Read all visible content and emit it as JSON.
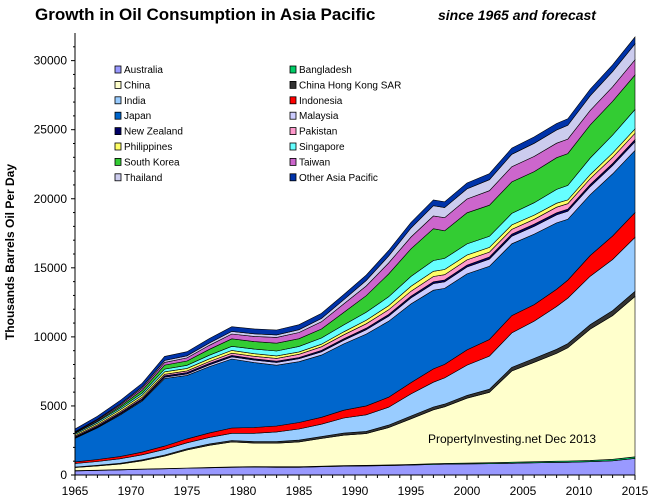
{
  "chart_data": {
    "type": "area",
    "stacked": true,
    "title": "Growth in Oil Consumption  in Asia Pacific",
    "subtitle": "since 1965 and forecast",
    "ylabel": "Thousands Barrels Oil Per Day",
    "xlabel": "",
    "annotation": "PropertyInvesting.net  Dec 2013",
    "xlim": [
      1965,
      2015
    ],
    "ylim": [
      0,
      32000
    ],
    "xticks": [
      "1965",
      "1970",
      "1975",
      "1980",
      "1985",
      "1990",
      "1995",
      "2000",
      "2005",
      "2010",
      "2015"
    ],
    "yticks": [
      "0",
      "5000",
      "10000",
      "15000",
      "20000",
      "25000",
      "30000"
    ],
    "grid": false,
    "legend_position": "inside-top-left",
    "x": [
      1965,
      1967,
      1969,
      1971,
      1973,
      1975,
      1977,
      1979,
      1981,
      1983,
      1985,
      1987,
      1989,
      1991,
      1993,
      1995,
      1997,
      1998,
      2000,
      2002,
      2004,
      2006,
      2008,
      2009,
      2011,
      2013,
      2015
    ],
    "series": [
      {
        "name": "Australia",
        "color": "#9999ff",
        "values": [
          300,
          330,
          370,
          410,
          450,
          490,
          520,
          560,
          570,
          560,
          560,
          600,
          640,
          660,
          680,
          720,
          760,
          780,
          800,
          820,
          850,
          880,
          910,
          920,
          960,
          1030,
          1200
        ]
      },
      {
        "name": "Bangladesh",
        "color": "#00cc66",
        "values": [
          20,
          20,
          20,
          20,
          20,
          20,
          30,
          30,
          40,
          40,
          40,
          40,
          40,
          40,
          50,
          50,
          60,
          60,
          60,
          70,
          80,
          80,
          90,
          90,
          100,
          110,
          120
        ]
      },
      {
        "name": "China",
        "color": "#ffffcc",
        "values": [
          220,
          300,
          400,
          600,
          900,
          1300,
          1600,
          1800,
          1700,
          1700,
          1800,
          2000,
          2200,
          2300,
          2700,
          3300,
          3900,
          4100,
          4700,
          5100,
          6600,
          7200,
          7800,
          8200,
          9500,
          10400,
          11600
        ]
      },
      {
        "name": "China Hong Kong SAR",
        "color": "#333333",
        "values": [
          40,
          50,
          60,
          70,
          80,
          90,
          100,
          110,
          110,
          120,
          130,
          140,
          150,
          160,
          180,
          200,
          200,
          190,
          200,
          220,
          260,
          280,
          300,
          300,
          330,
          360,
          380
        ]
      },
      {
        "name": "India",
        "color": "#99ccff",
        "values": [
          250,
          280,
          320,
          360,
          400,
          430,
          470,
          520,
          600,
          700,
          800,
          900,
          1100,
          1200,
          1300,
          1600,
          1800,
          1900,
          2200,
          2400,
          2500,
          2700,
          3100,
          3300,
          3500,
          3700,
          3900
        ]
      },
      {
        "name": "Indonesia",
        "color": "#ff0000",
        "values": [
          120,
          140,
          160,
          200,
          240,
          280,
          330,
          380,
          420,
          430,
          470,
          500,
          560,
          640,
          720,
          820,
          960,
          980,
          1100,
          1200,
          1250,
          1200,
          1250,
          1300,
          1500,
          1700,
          1800
        ]
      },
      {
        "name": "Japan",
        "color": "#0066cc",
        "values": [
          1700,
          2300,
          3000,
          3700,
          4900,
          4600,
          4800,
          5000,
          4700,
          4400,
          4400,
          4500,
          4800,
          5200,
          5500,
          5700,
          5700,
          5500,
          5500,
          5300,
          5200,
          5100,
          4800,
          4400,
          4400,
          4500,
          4500
        ]
      },
      {
        "name": "Malaysia",
        "color": "#ccccff",
        "values": [
          40,
          50,
          60,
          70,
          90,
          110,
          130,
          160,
          180,
          200,
          220,
          240,
          270,
          320,
          370,
          430,
          480,
          480,
          500,
          520,
          550,
          560,
          580,
          580,
          590,
          600,
          620
        ]
      },
      {
        "name": "New Zealand",
        "color": "#000066",
        "values": [
          70,
          80,
          90,
          95,
          100,
          100,
          100,
          100,
          95,
          90,
          90,
          100,
          100,
          110,
          120,
          130,
          130,
          130,
          140,
          150,
          150,
          155,
          155,
          150,
          150,
          155,
          160
        ]
      },
      {
        "name": "Pakistan",
        "color": "#ff99cc",
        "values": [
          70,
          80,
          90,
          100,
          110,
          120,
          140,
          160,
          180,
          200,
          230,
          260,
          290,
          320,
          340,
          360,
          380,
          380,
          370,
          360,
          340,
          360,
          400,
          400,
          420,
          440,
          460
        ]
      },
      {
        "name": "Philippines",
        "color": "#ffff66",
        "values": [
          100,
          120,
          140,
          160,
          180,
          180,
          190,
          200,
          190,
          180,
          170,
          190,
          220,
          250,
          300,
          350,
          380,
          380,
          360,
          340,
          330,
          300,
          290,
          280,
          300,
          310,
          320
        ]
      },
      {
        "name": "Singapore",
        "color": "#66ffff",
        "values": [
          80,
          100,
          120,
          150,
          200,
          220,
          260,
          300,
          330,
          360,
          400,
          450,
          500,
          580,
          640,
          720,
          780,
          800,
          800,
          800,
          830,
          900,
          1000,
          1050,
          1200,
          1300,
          1400
        ]
      },
      {
        "name": "South Korea",
        "color": "#33cc33",
        "values": [
          30,
          60,
          120,
          200,
          290,
          310,
          430,
          540,
          540,
          560,
          560,
          650,
          900,
          1200,
          1650,
          2000,
          2300,
          2000,
          2250,
          2250,
          2280,
          2250,
          2300,
          2300,
          2400,
          2450,
          2500
        ]
      },
      {
        "name": "Taiwan",
        "color": "#cc66cc",
        "values": [
          50,
          70,
          100,
          140,
          190,
          230,
          290,
          350,
          380,
          420,
          450,
          520,
          620,
          700,
          800,
          850,
          920,
          950,
          1000,
          1050,
          1100,
          1100,
          1050,
          1050,
          1050,
          1050,
          1100
        ]
      },
      {
        "name": "Thailand",
        "color": "#ccccee",
        "values": [
          40,
          50,
          70,
          100,
          140,
          150,
          170,
          190,
          190,
          180,
          200,
          240,
          300,
          400,
          500,
          650,
          750,
          730,
          730,
          800,
          900,
          950,
          950,
          1000,
          1050,
          1100,
          1150
        ]
      },
      {
        "name": "Other Asia Pacific",
        "color": "#0033aa",
        "values": [
          200,
          220,
          250,
          270,
          300,
          300,
          320,
          340,
          350,
          360,
          360,
          370,
          380,
          390,
          400,
          410,
          420,
          420,
          430,
          440,
          450,
          460,
          470,
          470,
          480,
          490,
          500
        ]
      }
    ]
  },
  "colors": {
    "outline": "#000000",
    "background": "#ffffff"
  }
}
